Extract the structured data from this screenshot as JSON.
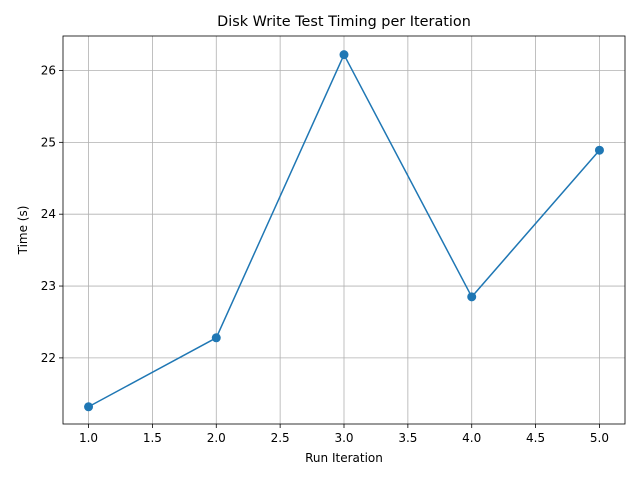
{
  "chart_data": {
    "type": "line",
    "title": "Disk Write Test Timing per Iteration",
    "xlabel": "Run Iteration",
    "ylabel": "Time (s)",
    "x": [
      1.0,
      2.0,
      3.0,
      4.0,
      5.0
    ],
    "series": [
      {
        "values": [
          21.32,
          22.28,
          26.22,
          22.85,
          24.89
        ]
      }
    ],
    "xlim": [
      0.8,
      5.2
    ],
    "ylim": [
      21.08,
      26.48
    ],
    "xticks": [
      1.0,
      1.5,
      2.0,
      2.5,
      3.0,
      3.5,
      4.0,
      4.5,
      5.0
    ],
    "xtick_labels": [
      "1.0",
      "1.5",
      "2.0",
      "2.5",
      "3.0",
      "3.5",
      "4.0",
      "4.5",
      "5.0"
    ],
    "yticks": [
      22,
      23,
      24,
      25,
      26
    ],
    "ytick_labels": [
      "22",
      "23",
      "24",
      "25",
      "26"
    ],
    "grid": true,
    "marker": "circle",
    "line_color": "#1f77b4",
    "grid_color": "#b0b0b0"
  }
}
